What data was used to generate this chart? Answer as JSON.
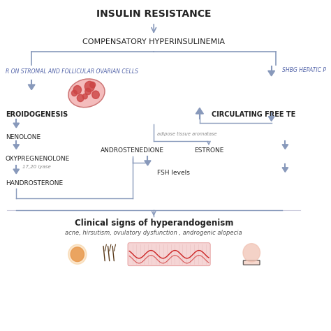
{
  "title": "INSULIN RESISTANCE",
  "background_color": "#ffffff",
  "arrow_color": "#8899bb",
  "text_color_dark": "#222222",
  "text_color_blue": "#6677aa",
  "node_hyperinsulinemia": "COMPENSATORY HYPERINSULINEMIA",
  "node_left_label": "R ON STROMAL AND FOLLICULAR OVARIAN CELLS",
  "node_right_label": "SHBG HEPATIC P",
  "node_steroid": "EROIDOGENESIS",
  "node_preg": "NENOLONE",
  "node_hydroxypregnenolone": "OXYPREGNENOLONE",
  "node_17_20": "17,20 lyase",
  "node_dehydro": "HANDROSTERONE",
  "node_androstenedione": "ANDROSTENEDIONE",
  "node_estrone": "ESTRONE",
  "node_adipose": "adipose tissue aromatase",
  "node_circulating": "CIRCULATING FREE TE",
  "node_fsh": "FSH levels",
  "clinical_title": "Clinical signs of hyperandogenism",
  "clinical_subtitle": "acne, hirsutism, ovulatory dysfunction , androgenic alopecia",
  "fig_width": 4.74,
  "fig_height": 4.74,
  "dpi": 100
}
